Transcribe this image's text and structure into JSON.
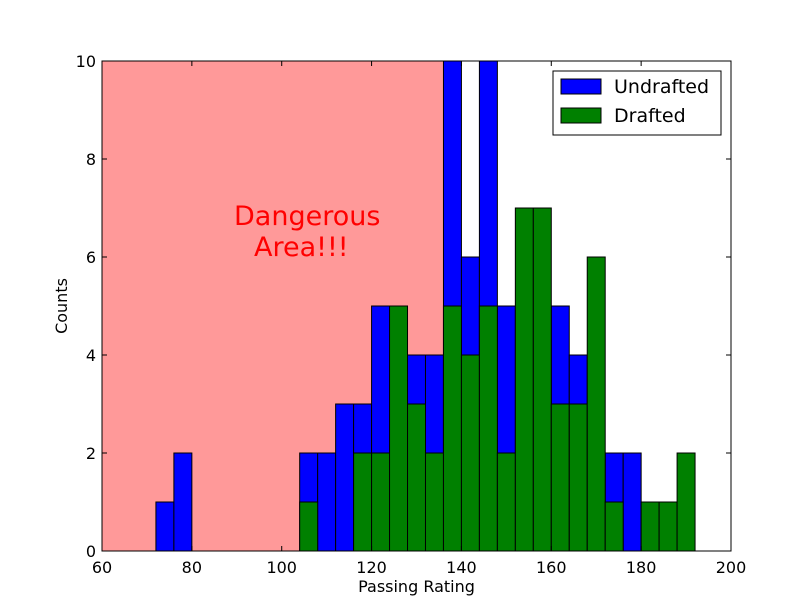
{
  "chart_data": {
    "type": "bar",
    "subtype": "overlaid-histogram",
    "xlabel": "Passing Rating",
    "ylabel": "Counts",
    "xlim": [
      60,
      200
    ],
    "ylim": [
      0,
      10
    ],
    "xticks": [
      60,
      80,
      100,
      120,
      140,
      160,
      180,
      200
    ],
    "yticks": [
      0,
      2,
      4,
      6,
      8,
      10
    ],
    "grid": false,
    "legend_position": "top-right",
    "bin_width": 4,
    "bin_starts": [
      60,
      64,
      68,
      72,
      76,
      80,
      84,
      88,
      92,
      96,
      100,
      104,
      108,
      112,
      116,
      120,
      124,
      128,
      132,
      136,
      140,
      144,
      148,
      152,
      156,
      160,
      164,
      168,
      172,
      176,
      180,
      184,
      188
    ],
    "series": [
      {
        "name": "Undrafted",
        "color": "#0000ff",
        "values": [
          0,
          0,
          0,
          1,
          2,
          0,
          0,
          0,
          0,
          0,
          0,
          2,
          2,
          3,
          3,
          5,
          0,
          4,
          4,
          10,
          6,
          10,
          5,
          0,
          0,
          5,
          4,
          0,
          2,
          2,
          0,
          0,
          0
        ]
      },
      {
        "name": "Drafted",
        "color": "#008000",
        "values": [
          0,
          0,
          0,
          0,
          0,
          0,
          0,
          0,
          0,
          0,
          0,
          1,
          0,
          0,
          2,
          2,
          5,
          3,
          2,
          5,
          4,
          5,
          2,
          7,
          7,
          3,
          3,
          6,
          1,
          0,
          1,
          1,
          2
        ]
      }
    ],
    "shaded_region": {
      "x_from": 60,
      "x_to": 138,
      "color": "#ff9999"
    },
    "annotation": {
      "lines": [
        "Dangerous",
        "Area!!!"
      ],
      "color": "#ff0000",
      "x": 90,
      "y": 6.6
    }
  }
}
